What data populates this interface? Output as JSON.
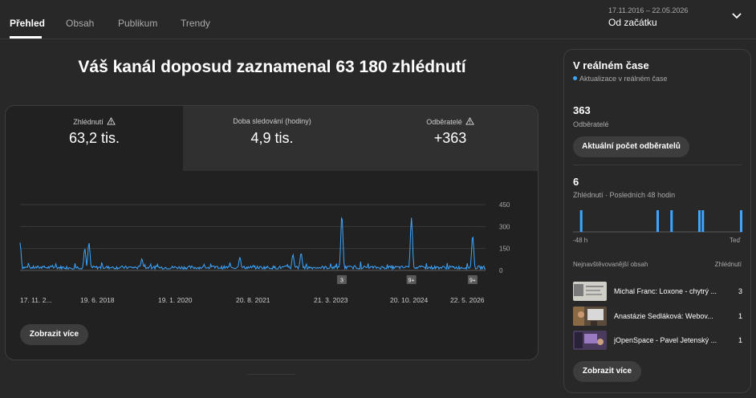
{
  "tabs": [
    {
      "label": "Přehled",
      "active": true
    },
    {
      "label": "Obsah",
      "active": false
    },
    {
      "label": "Publikum",
      "active": false
    },
    {
      "label": "Trendy",
      "active": false
    }
  ],
  "date_range": {
    "dates": "17.11.2016 – 22.05.2026",
    "label": "Od začátku",
    "icon": "chevron-down-icon"
  },
  "headline": "Váš kanál doposud zaznamenal 63 180 zhlédnutí",
  "metrics": [
    {
      "label": "Zhlédnutí",
      "value": "63,2 tis.",
      "warning": true
    },
    {
      "label": "Doba sledování (hodiny)",
      "value": "4,9 tis.",
      "warning": false
    },
    {
      "label": "Odběratelé",
      "value": "+363",
      "warning": true
    }
  ],
  "main_button": "Zobrazit více",
  "chart_data": {
    "type": "line",
    "x_tick_labels": [
      "17. 11. 2...",
      "19. 6. 2018",
      "19. 1. 2020",
      "20. 8. 2021",
      "21. 3. 2023",
      "20. 10. 2024",
      "22. 5. 2026"
    ],
    "y_tick_labels": [
      "450",
      "300",
      "150",
      "0"
    ],
    "ylim": [
      0,
      450
    ],
    "grid": true,
    "series_color": "#3ea6ff",
    "peaks": [
      {
        "date": "17. 11. 2016",
        "value": 190
      },
      {
        "date": "2018-03",
        "value": 150
      },
      {
        "date": "2018-04",
        "value": 190
      },
      {
        "date": "2019-05",
        "value": 80
      },
      {
        "date": "2021-05",
        "value": 90
      },
      {
        "date": "2022-06",
        "value": 110
      },
      {
        "date": "2022-08",
        "value": 120
      },
      {
        "date": "2023-06",
        "value": 380
      },
      {
        "date": "2024-11",
        "value": 360
      },
      {
        "date": "2026-02",
        "value": 240
      }
    ],
    "baseline": 20,
    "markers": [
      {
        "label": "3",
        "date": "2023-06"
      },
      {
        "label": "9+",
        "date": "2024-11"
      },
      {
        "label": "9+",
        "date": "2026-02"
      }
    ]
  },
  "realtime": {
    "title": "V reálném čase",
    "subtitle": "Aktualizace v reálném čase",
    "subscribers_count": "363",
    "subscribers_label": "Odběratelé",
    "subscribers_button": "Aktuální počet odběratelů",
    "views_count": "6",
    "views_label": "Zhlédnutí · Posledních 48 hodin",
    "mini_chart": {
      "type": "bar",
      "x_start": "-48 h",
      "x_end": "Teď",
      "bars": [
        {
          "hour": -46,
          "value": 1
        },
        {
          "hour": -24,
          "value": 1
        },
        {
          "hour": -20,
          "value": 1
        },
        {
          "hour": -12,
          "value": 1
        },
        {
          "hour": -11,
          "value": 1
        },
        {
          "hour": 0,
          "value": 1
        }
      ]
    },
    "top_header_left": "Nejnavštěvovanější obsah",
    "top_header_right": "Zhlédnutí",
    "top_content": [
      {
        "title": "Michal Franc: Loxone - chytrý ...",
        "views": "3"
      },
      {
        "title": "Anastázie Sedláková: Webov...",
        "views": "1"
      },
      {
        "title": "jOpenSpace - Pavel Jetenský ...",
        "views": "1"
      }
    ],
    "more_button": "Zobrazit více"
  }
}
